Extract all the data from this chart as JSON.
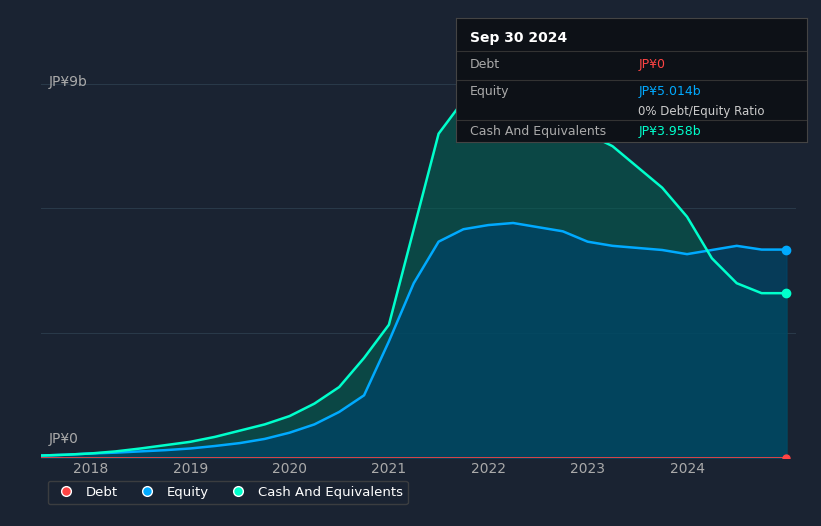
{
  "background_color": "#1a2332",
  "plot_bg_color": "#1a2332",
  "y_label_top": "JP¥9b",
  "y_label_bottom": "JP¥0",
  "x_ticks": [
    2018,
    2019,
    2020,
    2021,
    2022,
    2023,
    2024
  ],
  "debt_color": "#ff4444",
  "equity_color": "#00aaff",
  "cash_color": "#00ffcc",
  "fill_equity_color": "#004466",
  "fill_cash_color": "#006655",
  "grid_color": "#2a3a4a",
  "tooltip_bg": "#0d1117",
  "years": [
    2017.5,
    2017.75,
    2018.0,
    2018.25,
    2018.5,
    2018.75,
    2019.0,
    2019.25,
    2019.5,
    2019.75,
    2020.0,
    2020.25,
    2020.5,
    2020.75,
    2021.0,
    2021.25,
    2021.5,
    2021.75,
    2022.0,
    2022.25,
    2022.5,
    2022.75,
    2023.0,
    2023.25,
    2023.5,
    2023.75,
    2024.0,
    2024.25,
    2024.5,
    2024.75,
    2025.0
  ],
  "debt": [
    0.0,
    0.0,
    0.0,
    0.0,
    0.0,
    0.0,
    0.0,
    0.0,
    0.0,
    0.0,
    0.0,
    0.0,
    0.0,
    0.0,
    0.0,
    0.0,
    0.0,
    0.0,
    0.0,
    0.0,
    0.0,
    0.0,
    0.0,
    0.0,
    0.0,
    0.0,
    0.0,
    0.0,
    0.0,
    0.0,
    0.0
  ],
  "equity": [
    0.05,
    0.07,
    0.1,
    0.12,
    0.15,
    0.18,
    0.22,
    0.28,
    0.35,
    0.45,
    0.6,
    0.8,
    1.1,
    1.5,
    2.8,
    4.2,
    5.2,
    5.5,
    5.6,
    5.65,
    5.55,
    5.45,
    5.2,
    5.1,
    5.05,
    5.0,
    4.9,
    5.0,
    5.1,
    5.01,
    5.01
  ],
  "cash": [
    0.05,
    0.07,
    0.1,
    0.15,
    0.22,
    0.3,
    0.38,
    0.5,
    0.65,
    0.8,
    1.0,
    1.3,
    1.7,
    2.4,
    3.2,
    5.5,
    7.8,
    8.6,
    8.8,
    8.9,
    8.5,
    8.2,
    7.8,
    7.5,
    7.0,
    6.5,
    5.8,
    4.8,
    4.2,
    3.96,
    3.96
  ],
  "ylim": [
    0,
    9.5
  ],
  "xlim": [
    2017.5,
    2025.1
  ],
  "legend_labels": [
    "Debt",
    "Equity",
    "Cash And Equivalents"
  ],
  "annotation": {
    "date": "Sep 30 2024",
    "debt_label": "Debt",
    "debt_value": "JP¥0",
    "equity_label": "Equity",
    "equity_value": "JP¥5.014b",
    "ratio_value": "0% Debt/Equity Ratio",
    "cash_label": "Cash And Equivalents",
    "cash_value": "JP¥3.958b"
  }
}
